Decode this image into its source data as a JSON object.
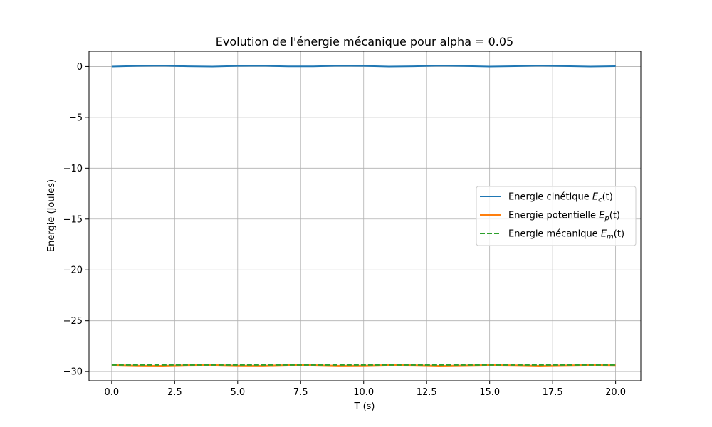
{
  "chart_data": {
    "type": "line",
    "title": "Evolution de l'énergie mécanique pour alpha = 0.05",
    "xlabel": "T (s)",
    "ylabel": "Energie (Joules)",
    "xlim": [
      -0.9,
      21.0
    ],
    "ylim": [
      -30.9,
      1.5
    ],
    "xticks": [
      0.0,
      2.5,
      5.0,
      7.5,
      10.0,
      12.5,
      15.0,
      17.5,
      20.0
    ],
    "xtick_labels": [
      "0.0",
      "2.5",
      "5.0",
      "7.5",
      "10.0",
      "12.5",
      "15.0",
      "17.5",
      "20.0"
    ],
    "yticks": [
      0,
      -5,
      -10,
      -15,
      -20,
      -25,
      -30
    ],
    "ytick_labels": [
      "0",
      "−5",
      "−10",
      "−15",
      "−20",
      "−25",
      "−30"
    ],
    "grid": true,
    "legend_position": "center-right",
    "x": [
      0,
      1,
      2,
      3,
      4,
      5,
      6,
      7,
      8,
      9,
      10,
      11,
      12,
      13,
      14,
      15,
      16,
      17,
      18,
      19,
      20
    ],
    "series": [
      {
        "name_main": "Energie cinétique ",
        "name_sym": "E",
        "name_sub": "c",
        "name_arg": "(t)",
        "color": "#1f77b4",
        "dash": "solid",
        "values": [
          0.0,
          0.06,
          0.08,
          0.02,
          0.0,
          0.06,
          0.07,
          0.01,
          0.01,
          0.07,
          0.06,
          0.0,
          0.02,
          0.08,
          0.05,
          0.0,
          0.03,
          0.08,
          0.04,
          0.0,
          0.03
        ]
      },
      {
        "name_main": "Energie potentielle ",
        "name_sym": "E",
        "name_sub": "p",
        "name_arg": "(t)",
        "color": "#ff7f0e",
        "dash": "solid",
        "values": [
          -29.35,
          -29.41,
          -29.43,
          -29.37,
          -29.35,
          -29.41,
          -29.42,
          -29.36,
          -29.36,
          -29.42,
          -29.41,
          -29.35,
          -29.37,
          -29.43,
          -29.4,
          -29.35,
          -29.38,
          -29.43,
          -29.39,
          -29.35,
          -29.38
        ]
      },
      {
        "name_main": "Energie mécanique ",
        "name_sym": "E",
        "name_sub": "m",
        "name_arg": "(t)",
        "color": "#2ca02c",
        "dash": "dashed",
        "values": [
          -29.35,
          -29.35,
          -29.35,
          -29.35,
          -29.35,
          -29.35,
          -29.35,
          -29.35,
          -29.35,
          -29.35,
          -29.35,
          -29.35,
          -29.35,
          -29.35,
          -29.35,
          -29.35,
          -29.35,
          -29.35,
          -29.35,
          -29.35,
          -29.35
        ]
      }
    ]
  }
}
